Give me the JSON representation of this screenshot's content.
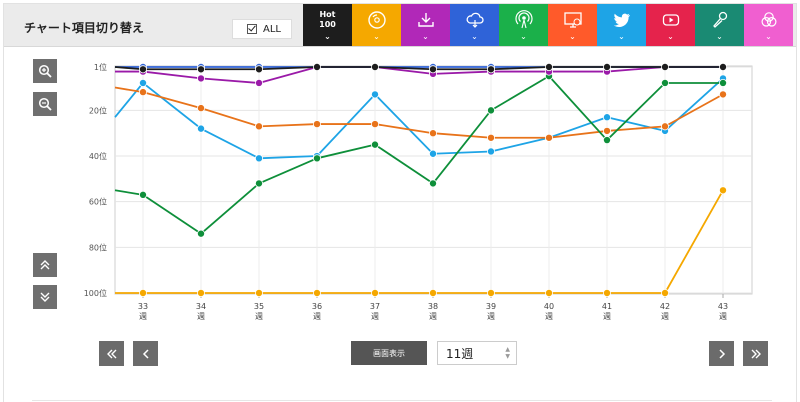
{
  "header": {
    "title": "チャート項目切り替え",
    "all_label": "ALL",
    "hot_line1": "Hot",
    "hot_line2": "100"
  },
  "tabs": [
    {
      "name": "hot100",
      "color": "#1d1d1d",
      "icon": "hot100"
    },
    {
      "name": "cd-sales",
      "color": "#f5a800",
      "icon": "disc-icon"
    },
    {
      "name": "downloads",
      "color": "#b128b8",
      "icon": "download-icon"
    },
    {
      "name": "streaming",
      "color": "#2f63d8",
      "icon": "cloud-icon"
    },
    {
      "name": "radio",
      "color": "#1bb04a",
      "icon": "broadcast-icon"
    },
    {
      "name": "video",
      "color": "#ff5a2a",
      "icon": "monitor-icon"
    },
    {
      "name": "twitter",
      "color": "#1ea4e6",
      "icon": "twitter-icon"
    },
    {
      "name": "youtube",
      "color": "#e5234c",
      "icon": "youtube-icon"
    },
    {
      "name": "karaoke",
      "color": "#1a8a73",
      "icon": "microphone-icon"
    },
    {
      "name": "lookup",
      "color": "#f05fd0",
      "icon": "overlap-circles-icon"
    }
  ],
  "controls": {
    "screen_label": "画面表示",
    "weeks_value": "11週"
  },
  "chart_data": {
    "type": "line",
    "categories": [
      "33\n週",
      "34\n週",
      "35\n週",
      "36\n週",
      "37\n週",
      "38\n週",
      "39\n週",
      "40\n週",
      "41\n週",
      "42\n週",
      "43\n週"
    ],
    "x_labels": [
      "33",
      "34",
      "35",
      "36",
      "37",
      "38",
      "39",
      "40",
      "41",
      "42",
      "43"
    ],
    "x_unit": "週",
    "y_ticks": [
      "1位",
      "20位",
      "40位",
      "60位",
      "80位",
      "100位"
    ],
    "y_tick_values": [
      1,
      20,
      40,
      60,
      80,
      100
    ],
    "ylim": [
      1,
      100
    ],
    "y_inverted": true,
    "grid": true,
    "series": [
      {
        "color": "#1ea4e6",
        "values": [
          8,
          28,
          41,
          40,
          13,
          39,
          38,
          32,
          23,
          29,
          6
        ],
        "start": 23
      },
      {
        "color": "#e8731a",
        "values": [
          12,
          19,
          27,
          26,
          26,
          30,
          32,
          32,
          29,
          27,
          13
        ],
        "start": 10
      },
      {
        "color": "#0e8f3a",
        "values": [
          57,
          74,
          52,
          41,
          35,
          52,
          20,
          5,
          33,
          8,
          8
        ],
        "start": 55
      },
      {
        "color": "#f5a800",
        "values": [
          100,
          100,
          100,
          100,
          100,
          100,
          100,
          100,
          100,
          100,
          55
        ],
        "start": 100
      },
      {
        "color": "#9a1aa8",
        "values": [
          3,
          6,
          8,
          1,
          1,
          4,
          3,
          3,
          3,
          1,
          1
        ],
        "start": 3
      },
      {
        "color": "#2f63d8",
        "values": [
          1,
          1,
          1,
          1,
          1,
          1,
          1,
          1,
          1,
          1,
          1
        ],
        "start": 1
      },
      {
        "color": "#1d1d1d",
        "values": [
          2,
          2,
          2,
          1,
          1,
          2,
          2,
          1,
          1,
          1,
          1
        ],
        "start": 1
      }
    ]
  }
}
